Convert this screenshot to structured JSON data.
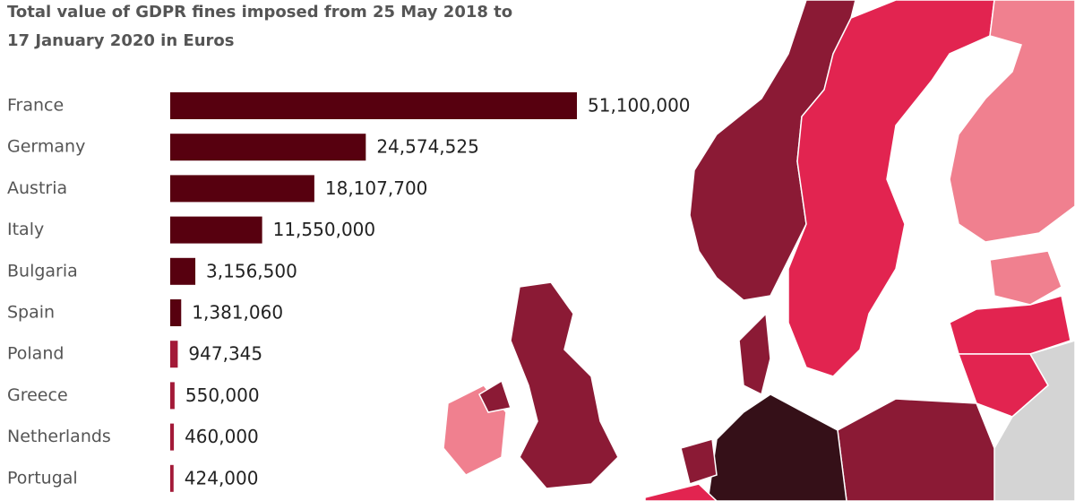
{
  "chart_data": {
    "type": "bar",
    "orientation": "horizontal",
    "title": [
      "Total value of GDPR fines imposed from 25 May 2018 to",
      "17 January 2020 in Euros"
    ],
    "categories": [
      "France",
      "Germany",
      "Austria",
      "Italy",
      "Bulgaria",
      "Spain",
      "Poland",
      "Greece",
      "Netherlands",
      "Portugal"
    ],
    "values": [
      51100000,
      24574525,
      18107700,
      11550000,
      3156500,
      1381060,
      947345,
      550000,
      460000,
      424000
    ],
    "value_labels": [
      "51,100,000",
      "24,574,525",
      "18,107,700",
      "11,550,000",
      "3,156,500",
      "1,381,060",
      "947,345",
      "550,000",
      "460,000",
      "424,000"
    ],
    "colors": [
      "#57000f",
      "#57000f",
      "#57000f",
      "#57000f",
      "#57000f",
      "#57000f",
      "#a31a38",
      "#a31a38",
      "#a31a38",
      "#a31a38"
    ]
  }
}
